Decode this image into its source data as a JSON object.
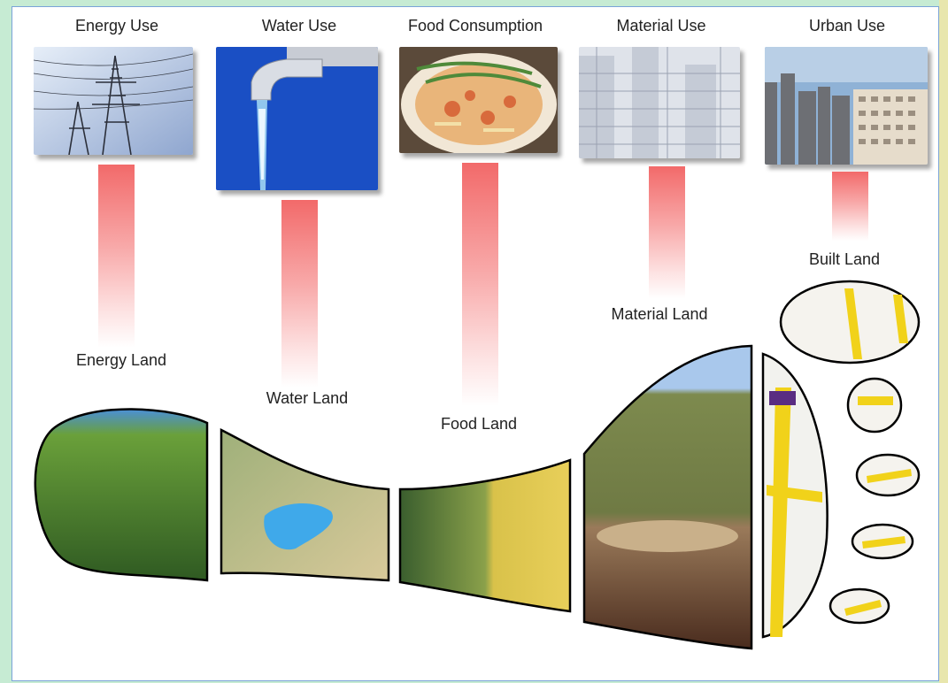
{
  "uses": [
    {
      "id": "energy",
      "title": "Energy Use",
      "land": "Energy Land"
    },
    {
      "id": "water",
      "title": "Water Use",
      "land": "Water Land"
    },
    {
      "id": "food",
      "title": "Food Consumption",
      "land": "Food Land"
    },
    {
      "id": "material",
      "title": "Material Use",
      "land": "Material Land"
    },
    {
      "id": "urban",
      "title": "Urban Use",
      "land": "Built Land"
    }
  ],
  "colors": {
    "bar_top": "#f26a6a",
    "frame_green": "#c6ebd3",
    "frame_yellow": "#e8e6ad",
    "outline": "#000000"
  }
}
